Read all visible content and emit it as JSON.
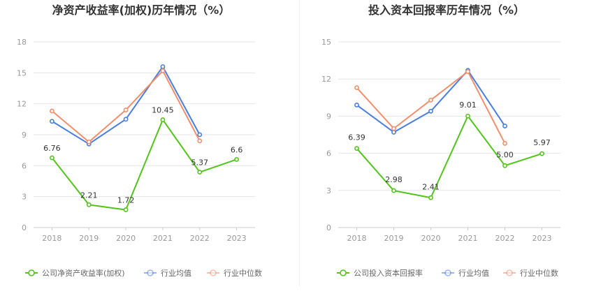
{
  "chart_data": [
    {
      "type": "line",
      "title": "净资产收益率(加权)历年情况（%）",
      "categories": [
        "2018",
        "2019",
        "2020",
        "2021",
        "2022",
        "2023"
      ],
      "ylim": [
        0,
        18
      ],
      "yticks": [
        0,
        3,
        6,
        9,
        12,
        15,
        18
      ],
      "grid": true,
      "legend_position": "bottom",
      "series": [
        {
          "name": "公司净资产收益率(加权)",
          "values": [
            6.76,
            2.21,
            1.72,
            10.45,
            5.37,
            6.6
          ],
          "labels": [
            "6.76",
            "2.21",
            "1.72",
            "10.45",
            "5.37",
            "6.6"
          ],
          "color": "#52c41a"
        },
        {
          "name": "行业均值",
          "values": [
            10.3,
            8.1,
            10.5,
            15.6,
            9.0,
            null
          ],
          "color": "#4a7ede"
        },
        {
          "name": "行业中位数",
          "values": [
            11.3,
            8.3,
            11.4,
            15.2,
            8.4,
            null
          ],
          "color": "#f28e6b"
        }
      ]
    },
    {
      "type": "line",
      "title": "投入资本回报率历年情况（%）",
      "categories": [
        "2018",
        "2019",
        "2020",
        "2021",
        "2022",
        "2023"
      ],
      "ylim": [
        0,
        15
      ],
      "yticks": [
        0,
        3,
        6,
        9,
        12,
        15
      ],
      "grid": true,
      "legend_position": "bottom",
      "series": [
        {
          "name": "公司投入资本回报率",
          "values": [
            6.39,
            2.98,
            2.41,
            9.01,
            5.0,
            5.97
          ],
          "labels": [
            "6.39",
            "2.98",
            "2.41",
            "9.01",
            "5.00",
            "5.97"
          ],
          "color": "#52c41a"
        },
        {
          "name": "行业均值",
          "values": [
            9.9,
            7.7,
            9.4,
            12.7,
            8.2,
            null
          ],
          "color": "#4a7ede"
        },
        {
          "name": "行业中位数",
          "values": [
            11.3,
            8.0,
            10.3,
            12.6,
            6.8,
            null
          ],
          "color": "#f28e6b"
        }
      ]
    }
  ]
}
